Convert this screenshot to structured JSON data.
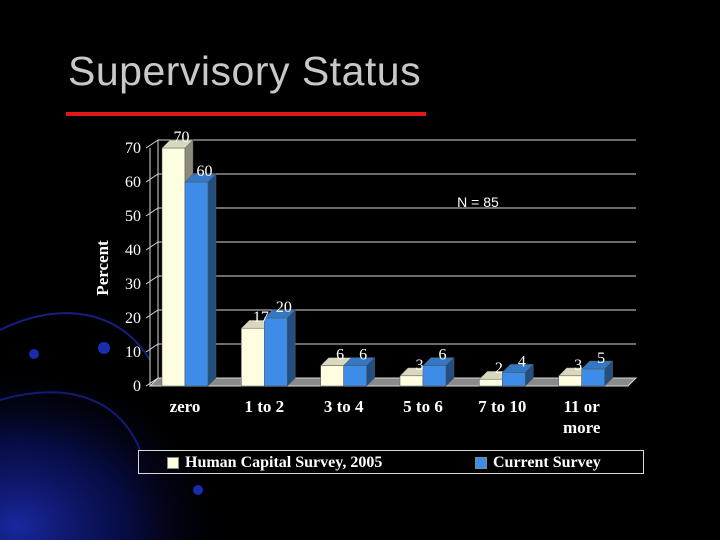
{
  "slide": {
    "title": "Supervisory Status"
  },
  "chart_data": {
    "type": "bar",
    "ylabel": "Percent",
    "xlabel": "",
    "ylim": [
      0,
      70
    ],
    "yticks": [
      0,
      10,
      20,
      30,
      40,
      50,
      60,
      70
    ],
    "categories": [
      "zero",
      "1 to 2",
      "3 to 4",
      "5 to 6",
      "7 to 10",
      "11 or more"
    ],
    "series": [
      {
        "name": "Human Capital Survey, 2005",
        "values": [
          70,
          17,
          6,
          3,
          2,
          3
        ],
        "color": "#fffde0"
      },
      {
        "name": "Current Survey",
        "values": [
          60,
          20,
          6,
          6,
          4,
          5
        ],
        "color": "#3d8de8"
      }
    ],
    "annotation": "N = 85",
    "grid": true,
    "legend_position": "bottom"
  }
}
